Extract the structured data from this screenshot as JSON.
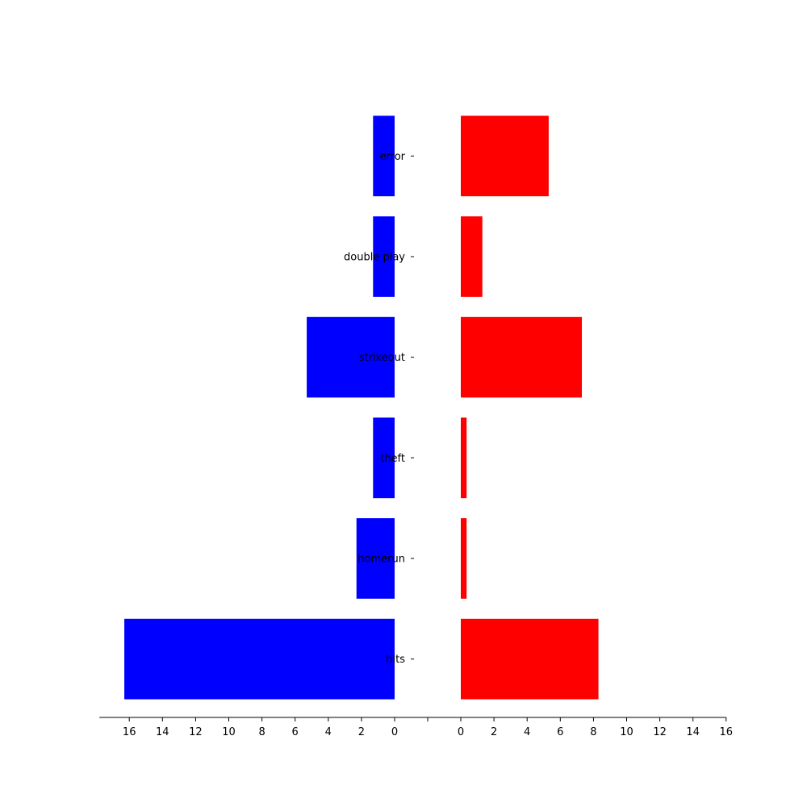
{
  "chart_data": {
    "type": "bar",
    "orientation": "horizontal",
    "layout": "mirrored-butterfly",
    "categories": [
      "hits",
      "homerun",
      "theft",
      "strikeout",
      "double play",
      "error"
    ],
    "series": [
      {
        "side": "left",
        "color": "#0000ff",
        "values": [
          16.3,
          2.3,
          1.3,
          5.3,
          1.3,
          1.3
        ]
      },
      {
        "side": "right",
        "color": "#ff0000",
        "values": [
          8.3,
          0.35,
          0.35,
          7.3,
          1.3,
          5.3
        ]
      }
    ],
    "xlim": [
      0,
      17.8
    ],
    "xticks": [
      0,
      2,
      4,
      6,
      8,
      10,
      12,
      14,
      16
    ],
    "xtick_labels": [
      "0",
      "2",
      "4",
      "6",
      "8",
      "10",
      "12",
      "14",
      "16"
    ],
    "grid": false,
    "legend": "none"
  }
}
